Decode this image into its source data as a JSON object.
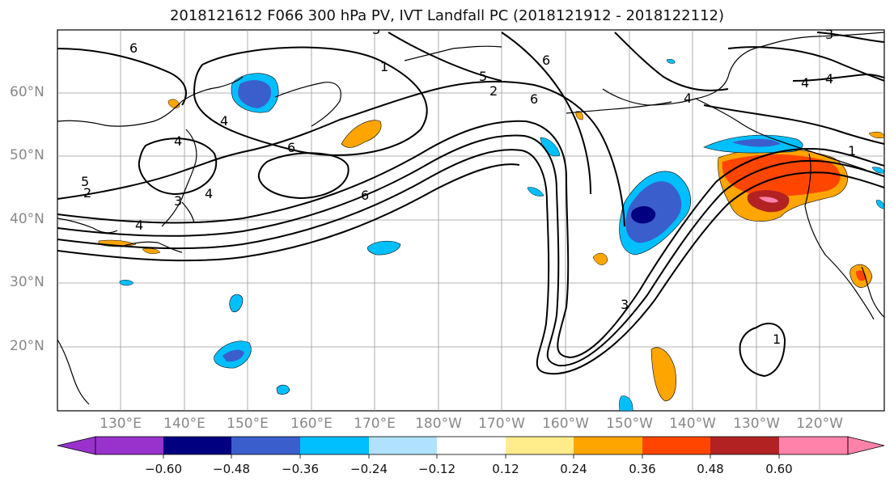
{
  "title": "2018121612 F066 300 hPa PV, IVT Landfall PC (2018121912 - 2018122112)",
  "latitude_labels": [
    "60°N",
    "50°N",
    "40°N",
    "30°N",
    "20°N"
  ],
  "longitude_labels": [
    "130°E",
    "140°E",
    "150°E",
    "160°E",
    "170°E",
    "180°W",
    "170°W",
    "160°W",
    "150°W",
    "140°W",
    "130°W",
    "120°W"
  ],
  "colorbar": {
    "colors": [
      "#9932CC",
      "#000080",
      "#3A5FCD",
      "#00BFFF",
      "#B0E2FF",
      "#FFFFFF",
      "#FFEC8B",
      "#FFA500",
      "#FF4500",
      "#B22222",
      "#FF82AB"
    ],
    "ticks": [
      "−0.60",
      "−0.48",
      "−0.36",
      "−0.24",
      "−0.12",
      "0.12",
      "0.24",
      "0.36",
      "0.48",
      "0.60"
    ]
  },
  "contour_labels": [
    "6",
    "4",
    "3",
    "1",
    "5",
    "2",
    "6",
    "6",
    "4",
    "4",
    "4",
    "3",
    "4",
    "6",
    "6",
    "5",
    "2",
    "3",
    "4",
    "4",
    "3",
    "1",
    "1"
  ]
}
